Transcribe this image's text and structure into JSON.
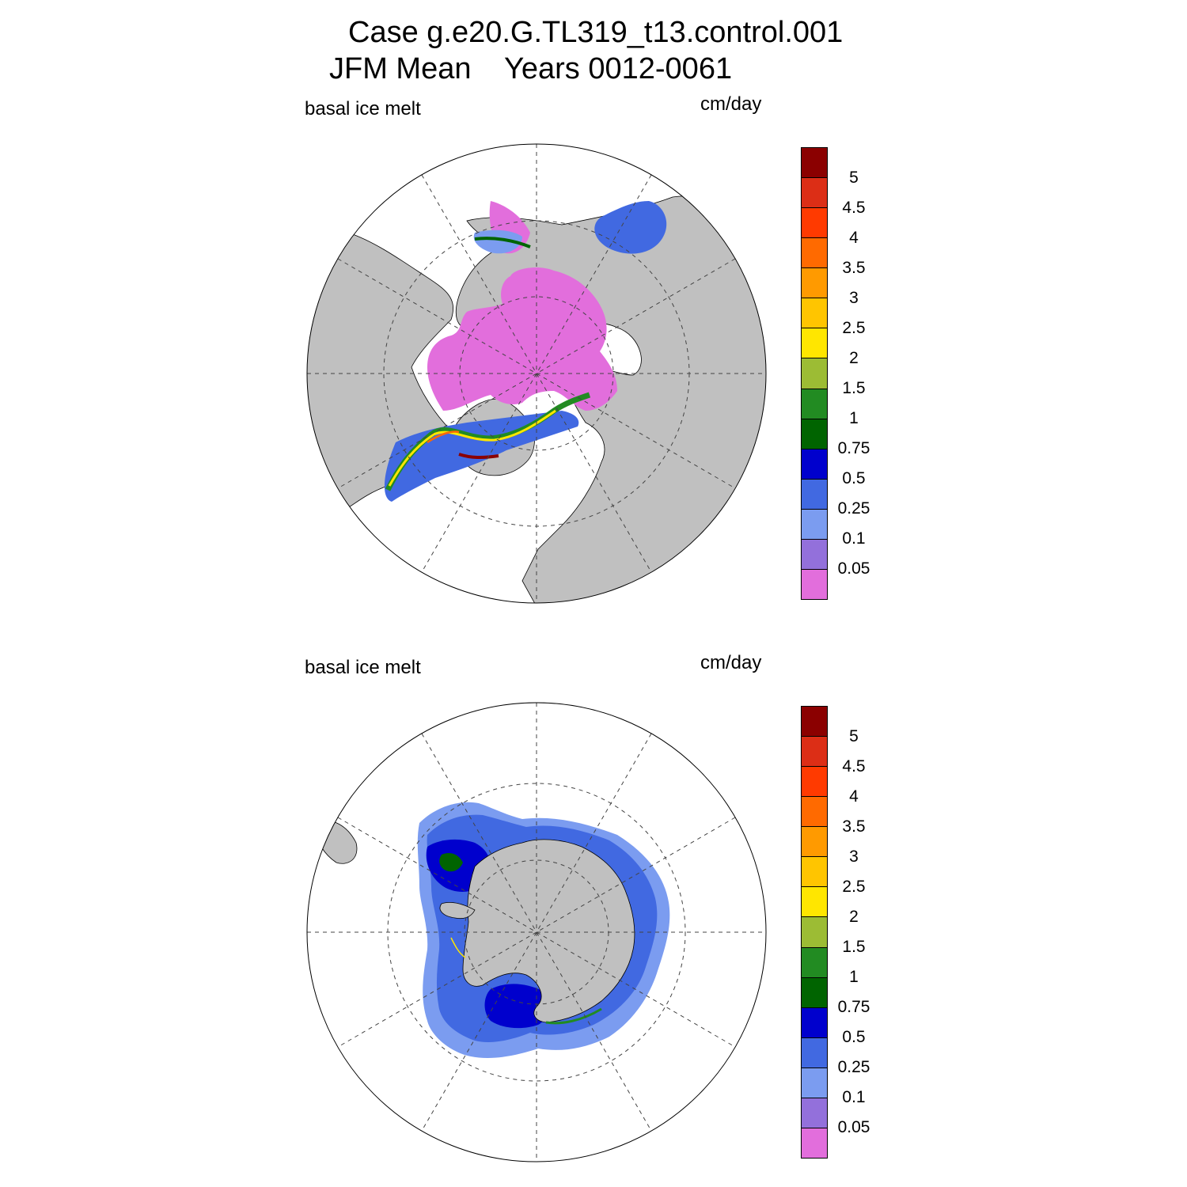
{
  "title": {
    "line1": "Case g.e20.G.TL319_t13.control.001",
    "line2": "JFM Mean    Years 0012-0061"
  },
  "panels": [
    {
      "id": "north",
      "field_label": "basal ice melt",
      "units_label": "cm/day",
      "hemisphere": "Northern Hemisphere polar stereographic",
      "dominant_values": "0 to 0.05 over central Arctic; 0.25-5 along ice edge"
    },
    {
      "id": "south",
      "field_label": "basal ice melt",
      "units_label": "cm/day",
      "hemisphere": "Southern Hemisphere polar stereographic",
      "dominant_values": "0.1-0.75 around Antarctica; max in Weddell and Ross Seas"
    }
  ],
  "colorbar": {
    "labels": [
      "5",
      "4.5",
      "4",
      "3.5",
      "3",
      "2.5",
      "2",
      "1.5",
      "1",
      "0.75",
      "0.5",
      "0.25",
      "0.1",
      "0.05"
    ],
    "colors": [
      "#8b0000",
      "#dc2e16",
      "#ff3a00",
      "#ff6a00",
      "#ff9a00",
      "#ffc500",
      "#ffe600",
      "#9cbc34",
      "#228b22",
      "#006400",
      "#0000cd",
      "#4169e1",
      "#7b9cf0",
      "#9370db",
      "#e26edc"
    ]
  },
  "map_colors": {
    "land": "#c0c0c0",
    "ocean": "#ffffff",
    "grid": "#444444"
  }
}
